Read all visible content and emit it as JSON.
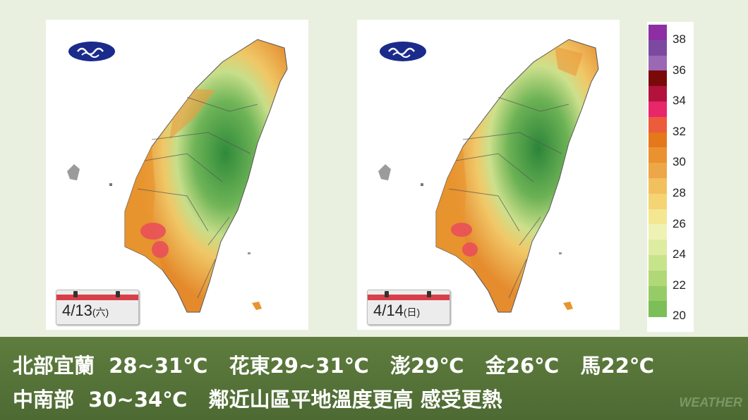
{
  "maps": [
    {
      "date": "4/13",
      "weekday": "(六)"
    },
    {
      "date": "4/14",
      "weekday": "(日)"
    }
  ],
  "legend": {
    "ticks": [
      "38",
      "36",
      "34",
      "32",
      "30",
      "28",
      "26",
      "24",
      "22",
      "20"
    ],
    "colors": [
      "#8e2ea4",
      "#7b4aa0",
      "#9b68b4",
      "#7a0a0a",
      "#b3123d",
      "#e8266a",
      "#ec5b3b",
      "#e4781a",
      "#ea9230",
      "#eda748",
      "#f2c05e",
      "#f4d473",
      "#f5e692",
      "#eef2b4",
      "#ddeca0",
      "#c8e48a",
      "#b1d877",
      "#96cc68",
      "#7cbf59"
    ]
  },
  "caption": {
    "line1": "北部宜蘭  28~31℃   花東29~31℃   澎29℃   金26℃   馬22℃",
    "line2": "中南部  30~34℃   鄰近山區平地溫度更高 感受更熱"
  },
  "watermark": "WEATHER"
}
